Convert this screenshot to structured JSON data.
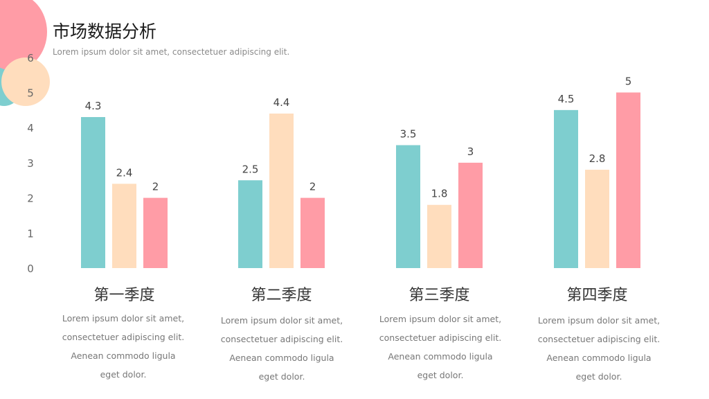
{
  "header": {
    "title": "市场数据分析",
    "subtitle": "Lorem ipsum dolor sit amet, consectetuer adipiscing elit."
  },
  "colors": {
    "teal": "#7ECECF",
    "peach": "#FFDDBD",
    "pink": "#FF9CA6",
    "deco_blue": "#8FC8F5",
    "deco_purple": "#B9A8F0"
  },
  "chart_data": {
    "type": "bar",
    "title": "",
    "xlabel": "",
    "ylabel": "",
    "ylim": [
      0,
      6
    ],
    "yticks": [
      0,
      1,
      2,
      3,
      4,
      5,
      6
    ],
    "grid": false,
    "legend": "none",
    "categories": [
      "第一季度",
      "第二季度",
      "第三季度",
      "第四季度"
    ],
    "series": [
      {
        "values": [
          4.3,
          2.5,
          3.5,
          4.5
        ],
        "color": "#7ECECF"
      },
      {
        "values": [
          2.4,
          4.4,
          1.8,
          2.8
        ],
        "color": "#FFDDBD"
      },
      {
        "values": [
          2,
          2,
          3,
          5
        ],
        "color": "#FF9CA6"
      }
    ],
    "data_labels": [
      [
        "4.3",
        "2.4",
        "2"
      ],
      [
        "2.5",
        "4.4",
        "2"
      ],
      [
        "3.5",
        "1.8",
        "3"
      ],
      [
        "4.5",
        "2.8",
        "5"
      ]
    ]
  },
  "descriptions": [
    [
      "Lorem ipsum dolor sit amet,",
      "consectetuer adipiscing elit.",
      "Aenean commodo ligula",
      "eget dolor."
    ],
    [
      "Lorem ipsum dolor sit amet,",
      "consectetuer adipiscing elit.",
      "Aenean commodo ligula",
      "eget dolor."
    ],
    [
      "Lorem ipsum dolor sit amet,",
      "consectetuer adipiscing elit.",
      "Aenean commodo ligula",
      "eget dolor."
    ],
    [
      "Lorem ipsum dolor sit amet,",
      "consectetuer adipiscing elit.",
      "Aenean commodo ligula",
      "eget dolor."
    ]
  ]
}
